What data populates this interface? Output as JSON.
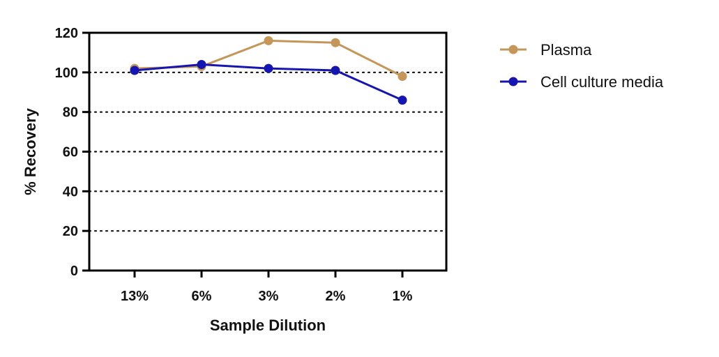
{
  "chart_data": {
    "type": "line",
    "title": "",
    "xlabel": "Sample Dilution",
    "ylabel": "% Recovery",
    "categories": [
      "13%",
      "6%",
      "3%",
      "2%",
      "1%"
    ],
    "ylim": [
      0,
      120
    ],
    "yticks": [
      0,
      20,
      40,
      60,
      80,
      100,
      120
    ],
    "grid": "horizontal dotted",
    "legend_position": "right",
    "series": [
      {
        "name": "Plasma",
        "color": "#C4965A",
        "values": [
          102,
          103,
          116,
          115,
          98
        ]
      },
      {
        "name": "Cell culture media",
        "color": "#1515B0",
        "values": [
          101,
          104,
          102,
          101,
          86
        ]
      }
    ]
  }
}
